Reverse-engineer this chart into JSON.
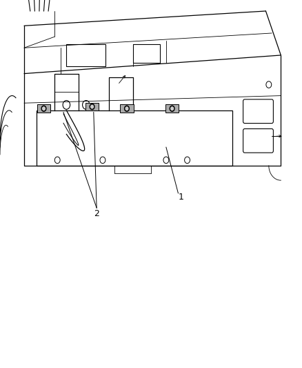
{
  "background_color": "#ffffff",
  "line_color": "#000000",
  "label_color": "#000000",
  "figure_width": 4.38,
  "figure_height": 5.33,
  "dpi": 100
}
